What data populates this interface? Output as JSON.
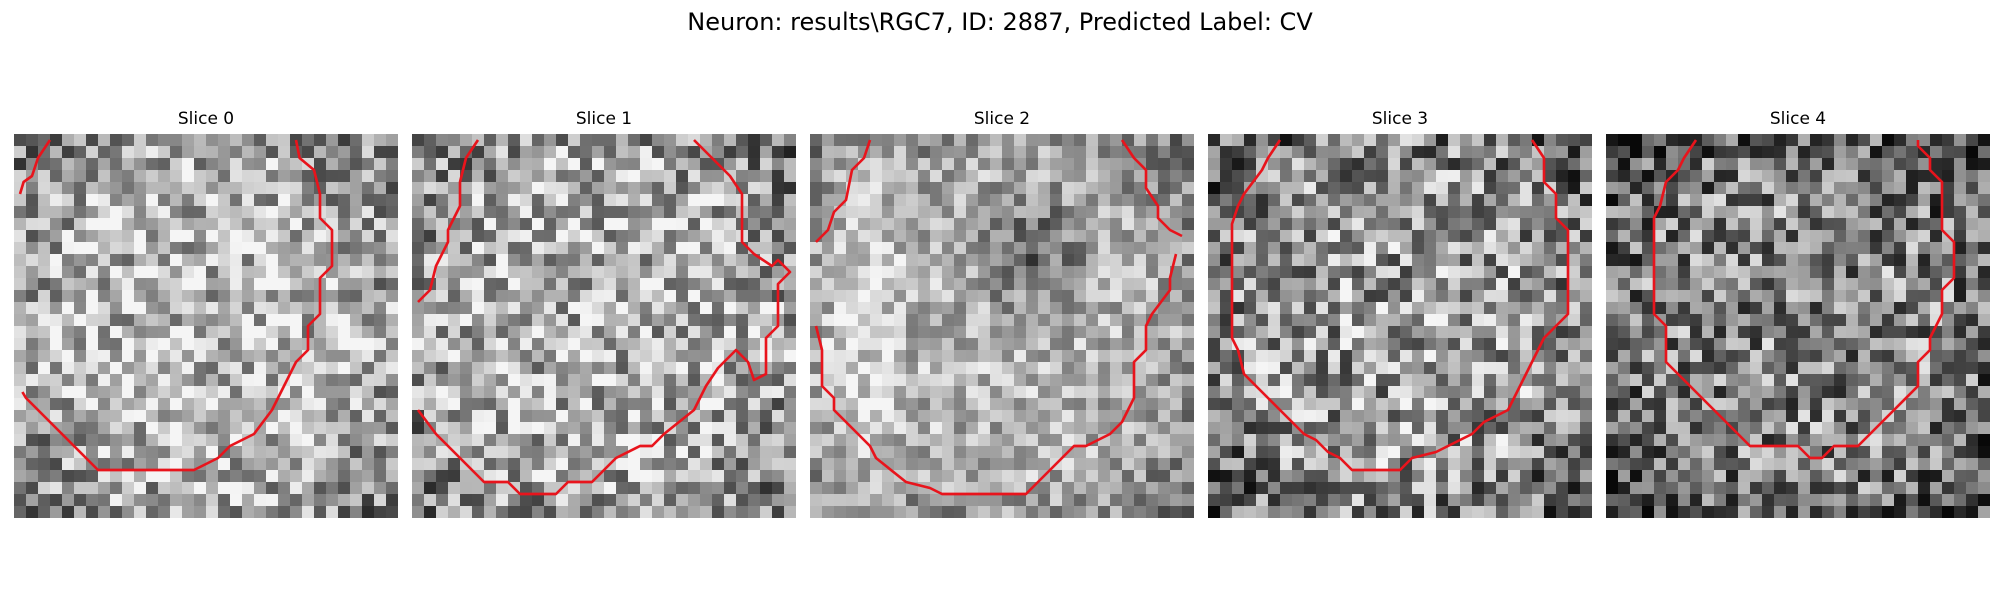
{
  "figure": {
    "suptitle": "Neuron: results\\RGC7, ID: 2887, Predicted Label: CV"
  },
  "panels": [
    {
      "title": "Slice 0",
      "seed": 11,
      "contrast": 0.42,
      "bright": 0.72,
      "dark_center": false
    },
    {
      "title": "Slice 1",
      "seed": 23,
      "contrast": 0.45,
      "bright": 0.7,
      "dark_center": false
    },
    {
      "title": "Slice 2",
      "seed": 37,
      "contrast": 0.3,
      "bright": 0.7,
      "dark_center": true
    },
    {
      "title": "Slice 3",
      "seed": 41,
      "contrast": 0.48,
      "bright": 0.6,
      "dark_center": false
    },
    {
      "title": "Slice 4",
      "seed": 53,
      "contrast": 0.48,
      "bright": 0.52,
      "dark_center": false
    }
  ],
  "colors": {
    "contour": "#e8141c"
  }
}
